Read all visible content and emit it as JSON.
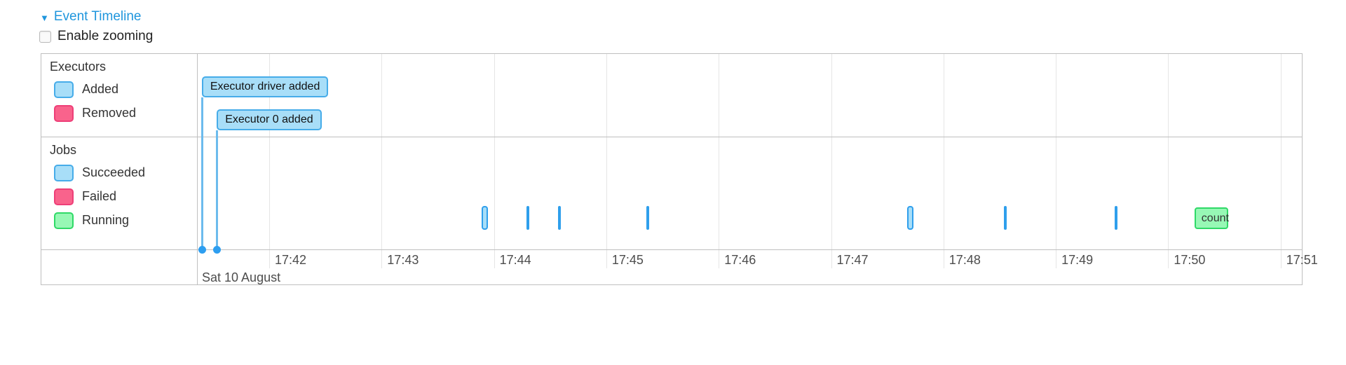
{
  "header": {
    "title": "Event Timeline",
    "collapse_glyph": "▼",
    "zoom_label": "Enable zooming",
    "zoom_checked": false
  },
  "colors": {
    "link": "#1f96dd",
    "blue_fill": "#a8def8",
    "blue_border": "#46ace9",
    "pink_fill": "#f9638c",
    "pink_border": "#ee3f78",
    "green_fill": "#97f8b5",
    "green_border": "#2fd967",
    "tick_blue": "#2f9fec",
    "stem_blue": "#6cbbed",
    "dot_blue": "#2d9ef0",
    "grid_line": "#e5e5e5",
    "frame_border": "#bfbfbf",
    "label_text": "#4d4d4d"
  },
  "legend": {
    "groups": [
      {
        "title": "Executors",
        "items": [
          {
            "label": "Added",
            "color": "blue"
          },
          {
            "label": "Removed",
            "color": "pink"
          }
        ]
      },
      {
        "title": "Jobs",
        "items": [
          {
            "label": "Succeeded",
            "color": "blue"
          },
          {
            "label": "Failed",
            "color": "pink"
          },
          {
            "label": "Running",
            "color": "green"
          }
        ]
      }
    ]
  },
  "chart_data": {
    "type": "timeline",
    "title": "Event Timeline",
    "axis": {
      "date_label": "Sat 10 August",
      "ticks": [
        "17:42",
        "17:43",
        "17:44",
        "17:45",
        "17:46",
        "17:47",
        "17:48",
        "17:49",
        "17:50",
        "17:51"
      ],
      "visible_start": "17:41:22",
      "visible_end": "17:51:12",
      "grid": true
    },
    "executor_events": [
      {
        "label": "Executor driver added",
        "time": "17:41:24",
        "status": "added"
      },
      {
        "label": "Executor 0 added",
        "time": "17:41:32",
        "status": "added"
      }
    ],
    "job_events": [
      {
        "time": "17:43:55",
        "status": "succeeded",
        "kind": "range"
      },
      {
        "time": "17:44:18",
        "status": "succeeded",
        "kind": "line"
      },
      {
        "time": "17:44:35",
        "status": "succeeded",
        "kind": "line"
      },
      {
        "time": "17:45:22",
        "status": "succeeded",
        "kind": "line"
      },
      {
        "time": "17:47:42",
        "status": "succeeded",
        "kind": "range"
      },
      {
        "time": "17:48:33",
        "status": "succeeded",
        "kind": "line"
      },
      {
        "time": "17:49:32",
        "status": "succeeded",
        "kind": "line"
      },
      {
        "label": "count",
        "start": "17:50:14",
        "end": "17:50:32",
        "status": "running",
        "kind": "box"
      }
    ]
  }
}
